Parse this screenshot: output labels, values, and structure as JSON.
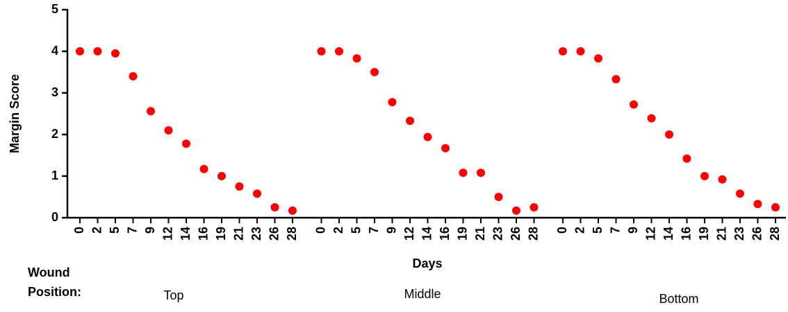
{
  "chart_data": {
    "type": "dot",
    "ylabel": "Margin Score",
    "xlabel": "Days",
    "group_label_lines": [
      "Wound",
      "Position:"
    ],
    "color": "#ff0000",
    "ylim": [
      0,
      5
    ],
    "yticks": [
      0,
      1,
      2,
      3,
      4,
      5
    ],
    "groups": [
      {
        "name": "Top",
        "categories": [
          "0",
          "2",
          "5",
          "7",
          "9",
          "12",
          "14",
          "16",
          "19",
          "21",
          "23",
          "26",
          "28"
        ],
        "values": [
          4,
          4,
          3.95,
          3.4,
          2.56,
          2.1,
          1.78,
          1.17,
          1.0,
          0.75,
          0.58,
          0.25,
          0.17
        ]
      },
      {
        "name": "Middle",
        "categories": [
          "0",
          "2",
          "5",
          "7",
          "9",
          "12",
          "14",
          "16",
          "19",
          "21",
          "23",
          "26",
          "28"
        ],
        "values": [
          4,
          4,
          3.83,
          3.5,
          2.78,
          2.33,
          1.94,
          1.67,
          1.08,
          1.08,
          0.5,
          0.17,
          0.25
        ]
      },
      {
        "name": "Bottom",
        "categories": [
          "0",
          "2",
          "5",
          "7",
          "9",
          "12",
          "14",
          "16",
          "19",
          "21",
          "23",
          "26",
          "28"
        ],
        "values": [
          4,
          4,
          3.83,
          3.33,
          2.72,
          2.39,
          2.0,
          1.42,
          1.0,
          0.92,
          0.58,
          0.33,
          0.25
        ]
      }
    ]
  }
}
